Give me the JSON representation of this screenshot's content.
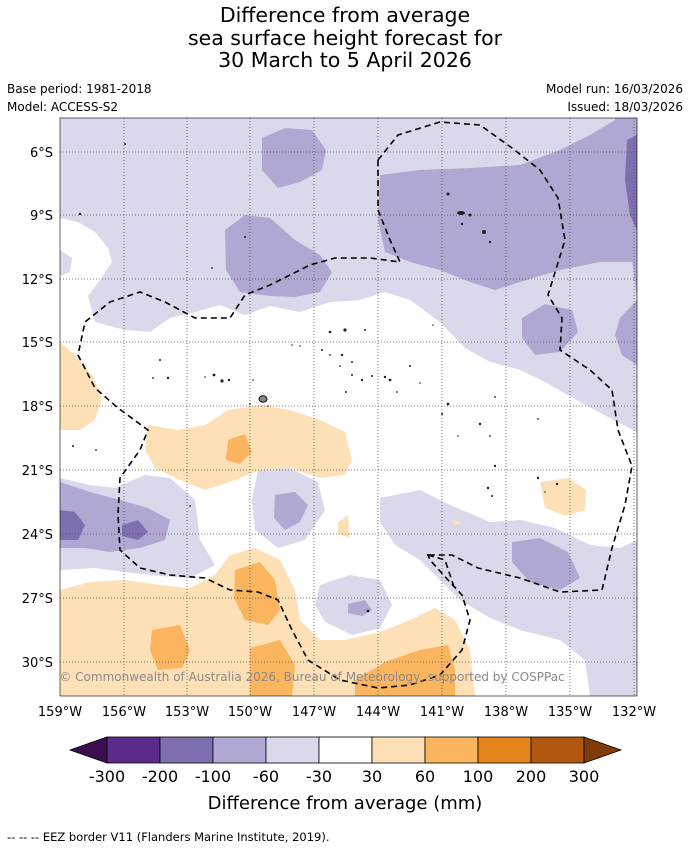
{
  "title_lines": [
    "Difference from average",
    "sea surface height forecast for",
    "30 March to 5 April 2026"
  ],
  "meta": {
    "base_period": "Base period: 1981-2018",
    "model": "Model: ACCESS-S2",
    "model_run": "Model run: 16/03/2026",
    "issued": "Issued: 18/03/2026"
  },
  "map": {
    "lon_ticks": [
      "159°W",
      "156°W",
      "153°W",
      "150°W",
      "147°W",
      "144°W",
      "141°W",
      "138°W",
      "135°W",
      "132°W"
    ],
    "lat_ticks": [
      "6°S",
      "9°S",
      "12°S",
      "15°S",
      "18°S",
      "21°S",
      "24°S",
      "27°S",
      "30°S"
    ],
    "copyright": "© Commonwealth of Australia 2026, Bureau of Meteorology, supported by COSPPac"
  },
  "legend": {
    "ticks": [
      "-300",
      "-200",
      "-100",
      "-60",
      "-30",
      "30",
      "60",
      "100",
      "200",
      "300"
    ],
    "colors": [
      "#3b0f4f",
      "#5b2a8a",
      "#7f6eb0",
      "#b0a8d2",
      "#d9d9eb",
      "#ffffff",
      "#fde0b6",
      "#fbb55e",
      "#e4841a",
      "#b2570f",
      "#7f3b08"
    ],
    "label": "Difference from average (mm)"
  },
  "footer": "-- -- -- EEZ border V11 (Flanders Marine Institute, 2019)."
}
